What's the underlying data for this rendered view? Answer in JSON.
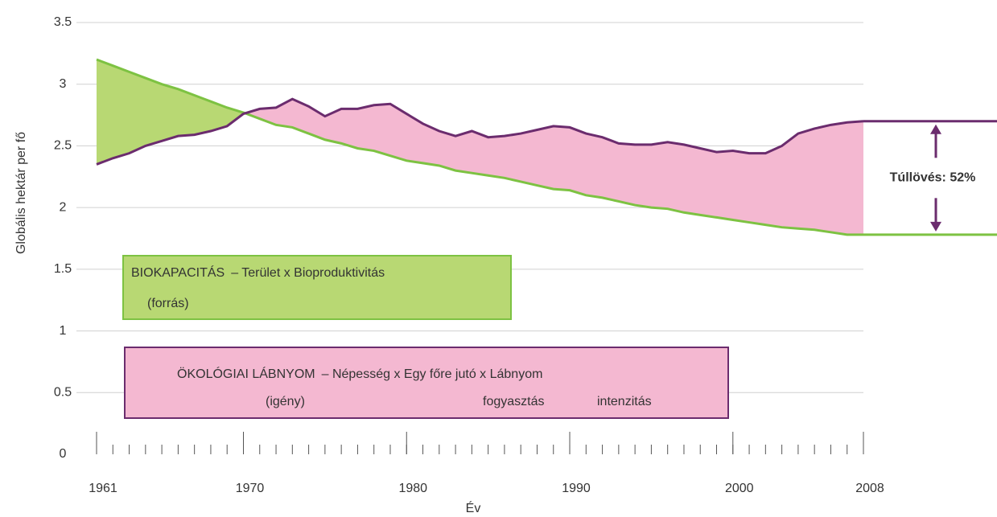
{
  "chart_data": {
    "type": "area_gap",
    "y_label": "Globális hektár per fő",
    "x_label": "Év",
    "x": [
      1961,
      1962,
      1963,
      1964,
      1965,
      1966,
      1967,
      1968,
      1969,
      1970,
      1971,
      1972,
      1973,
      1974,
      1975,
      1976,
      1977,
      1978,
      1979,
      1980,
      1981,
      1982,
      1983,
      1984,
      1985,
      1986,
      1987,
      1988,
      1989,
      1990,
      1991,
      1992,
      1993,
      1994,
      1995,
      1996,
      1997,
      1998,
      1999,
      2000,
      2001,
      2002,
      2003,
      2004,
      2005,
      2006,
      2007,
      2008
    ],
    "series": [
      {
        "name": "BIOKAPACITÁS",
        "formula": "– Terület x Bioproduktivitás",
        "notes": [
          "(forrás)"
        ],
        "color": "#7dc242",
        "fill": "#b8d873",
        "values": [
          3.2,
          3.15,
          3.1,
          3.05,
          3.0,
          2.96,
          2.91,
          2.86,
          2.81,
          2.77,
          2.72,
          2.67,
          2.65,
          2.6,
          2.55,
          2.52,
          2.48,
          2.46,
          2.42,
          2.38,
          2.36,
          2.34,
          2.3,
          2.28,
          2.26,
          2.24,
          2.21,
          2.18,
          2.15,
          2.14,
          2.1,
          2.08,
          2.05,
          2.02,
          2.0,
          1.99,
          1.96,
          1.94,
          1.92,
          1.9,
          1.88,
          1.86,
          1.84,
          1.83,
          1.82,
          1.8,
          1.78,
          1.78
        ]
      },
      {
        "name": "ÖKOLÓGIAI LÁBNYOM",
        "formula": "– Népesség x Egy főre jutó x Lábnyom",
        "notes": [
          "(igény)",
          "fogyasztás",
          "intenzitás"
        ],
        "color": "#6b2c6e",
        "fill": "#f4b8d1",
        "values": [
          2.35,
          2.4,
          2.44,
          2.5,
          2.54,
          2.58,
          2.59,
          2.62,
          2.66,
          2.76,
          2.8,
          2.81,
          2.88,
          2.82,
          2.74,
          2.8,
          2.8,
          2.83,
          2.84,
          2.76,
          2.68,
          2.62,
          2.58,
          2.62,
          2.57,
          2.58,
          2.6,
          2.63,
          2.66,
          2.65,
          2.6,
          2.57,
          2.52,
          2.51,
          2.51,
          2.53,
          2.51,
          2.48,
          2.45,
          2.46,
          2.44,
          2.44,
          2.5,
          2.6,
          2.64,
          2.67,
          2.69,
          2.7
        ]
      }
    ],
    "annotation": "Túllövés: 52%",
    "xlim": [
      1961,
      2008
    ],
    "xticks": [
      1961,
      1970,
      1980,
      1990,
      2000,
      2008
    ],
    "ylim": [
      0,
      3.5
    ],
    "yticks": [
      0,
      0.5,
      1,
      1.5,
      2,
      2.5,
      3,
      3.5
    ],
    "grid": true
  }
}
